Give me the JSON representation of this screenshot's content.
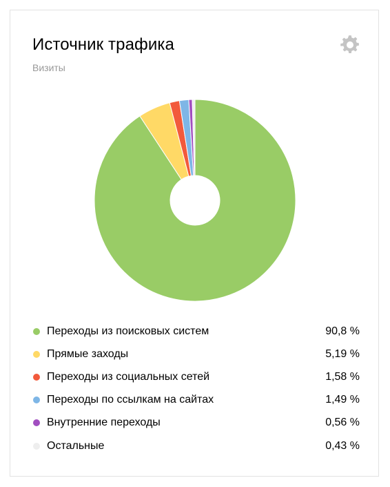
{
  "header": {
    "title": "Источник трафика",
    "subtitle": "Визиты",
    "settings_icon": "gear-icon"
  },
  "colors": {
    "gear": "#c4c4c4",
    "border": "#e2e2e2"
  },
  "chart_data": {
    "type": "pie",
    "title": "Источник трафика",
    "subtitle": "Визиты",
    "donut": true,
    "legend_position": "bottom",
    "series": [
      {
        "name": "Переходы из поисковых систем",
        "value": 90.8,
        "label": "90,8 %",
        "color": "#99cc66"
      },
      {
        "name": "Прямые заходы",
        "value": 5.19,
        "label": "5,19 %",
        "color": "#ffd966"
      },
      {
        "name": "Переходы из социальных сетей",
        "value": 1.58,
        "label": "1,58 %",
        "color": "#f25a3c"
      },
      {
        "name": "Переходы по ссылкам на сайтах",
        "value": 1.49,
        "label": "1,49 %",
        "color": "#7eb6e6"
      },
      {
        "name": "Внутренние переходы",
        "value": 0.56,
        "label": "0,56 %",
        "color": "#a14ec0"
      },
      {
        "name": "Остальные",
        "value": 0.43,
        "label": "0,43 %",
        "color": "#eeeeee"
      }
    ]
  }
}
